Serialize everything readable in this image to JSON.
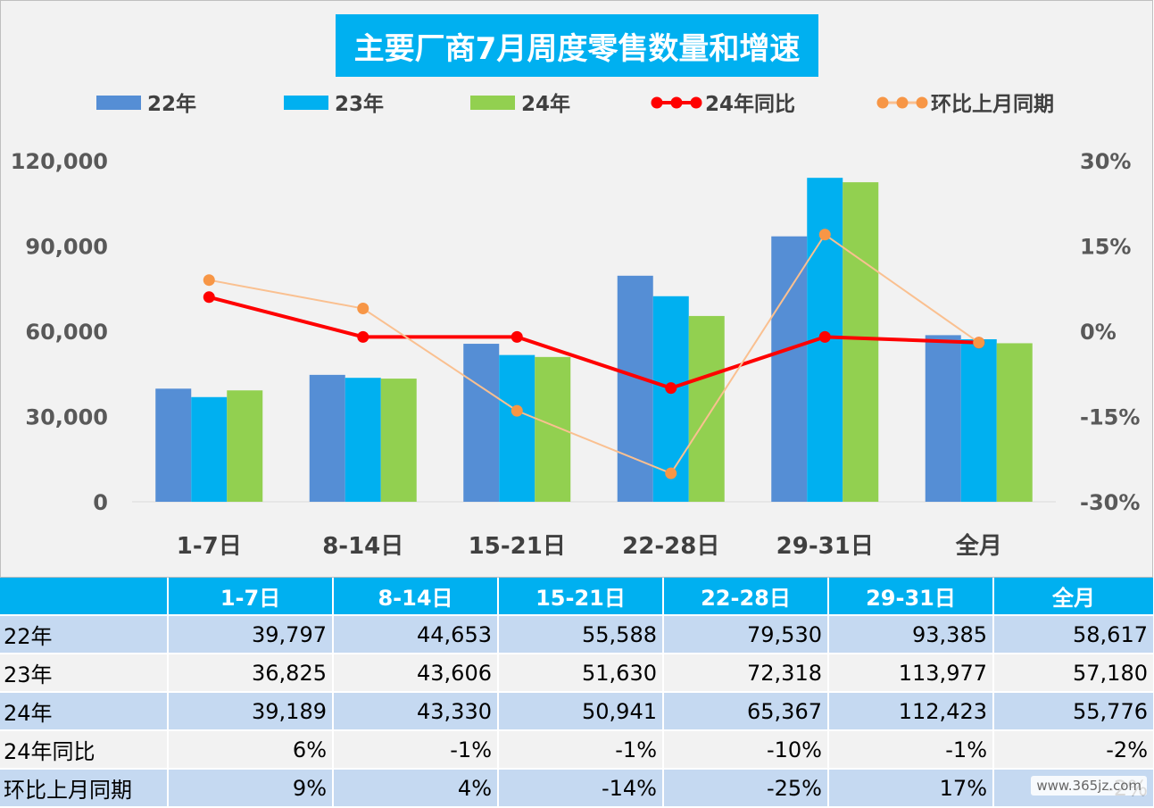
{
  "chart_data": {
    "type": "bar",
    "title": "主要厂商7月周度零售数量和增速",
    "categories": [
      "1-7日",
      "8-14日",
      "15-21日",
      "22-28日",
      "29-31日",
      "全月"
    ],
    "series": [
      {
        "name": "22年",
        "kind": "bar",
        "color": "#558ed5",
        "values": [
          39797,
          44653,
          55588,
          79530,
          93385,
          58617
        ]
      },
      {
        "name": "23年",
        "kind": "bar",
        "color": "#00b0f0",
        "values": [
          36825,
          43606,
          51630,
          72318,
          113977,
          57180
        ]
      },
      {
        "name": "24年",
        "kind": "bar",
        "color": "#92d050",
        "values": [
          39189,
          43330,
          50941,
          65367,
          112423,
          55776
        ]
      }
    ],
    "line_series": [
      {
        "name": "24年同比",
        "color": "#ff0000",
        "values": [
          0.06,
          -0.01,
          -0.01,
          -0.1,
          -0.01,
          -0.02
        ]
      },
      {
        "name": "环比上月同期",
        "color": "#fac090",
        "marker_color": "#f79646",
        "values": [
          0.09,
          0.04,
          -0.14,
          -0.25,
          0.17,
          -0.02
        ]
      }
    ],
    "y_left": {
      "min": 0,
      "max": 120000,
      "ticks": [
        "0",
        "30,000",
        "60,000",
        "90,000",
        "120,000"
      ]
    },
    "y_right": {
      "min": -0.3,
      "max": 0.3,
      "ticks": [
        "-30%",
        "-15%",
        "0%",
        "15%",
        "30%"
      ]
    },
    "legend_position": "top",
    "grid": false
  },
  "table": {
    "header": [
      "",
      "1-7日",
      "8-14日",
      "15-21日",
      "22-28日",
      "29-31日",
      "全月"
    ],
    "rows": [
      {
        "label": "22年",
        "cells": [
          "39,797",
          "44,653",
          "55,588",
          "79,530",
          "93,385",
          "58,617"
        ]
      },
      {
        "label": "23年",
        "cells": [
          "36,825",
          "43,606",
          "51,630",
          "72,318",
          "113,977",
          "57,180"
        ]
      },
      {
        "label": "24年",
        "cells": [
          "39,189",
          "43,330",
          "50,941",
          "65,367",
          "112,423",
          "55,776"
        ]
      },
      {
        "label": "24年同比",
        "cells": [
          "6%",
          "-1%",
          "-1%",
          "-10%",
          "-1%",
          "-2%"
        ]
      },
      {
        "label": "环比上月同期",
        "cells": [
          "9%",
          "4%",
          "-14%",
          "-25%",
          "17%",
          "-2%"
        ]
      }
    ]
  },
  "watermark": "www.365jz.com"
}
